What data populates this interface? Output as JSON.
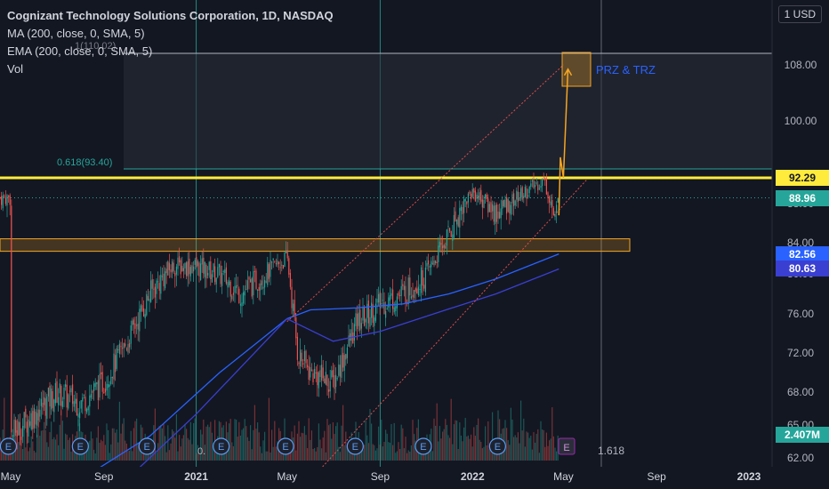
{
  "header": {
    "symbol_line": "Cognizant Technology Solutions Corporation, 1D, NASDAQ",
    "ma_line": "MA (200, close, 0, SMA, 5)",
    "ema_line": "EMA (200, close, 0, SMA, 5)",
    "vol_line": "Vol",
    "currency": "USD"
  },
  "colors": {
    "background": "#131722",
    "up_candle": "#26a69a",
    "down_candle": "#ef5350",
    "ma_line": "#2962ff",
    "ema_line": "#3a3fd1",
    "fib_zone": "#2a2e39",
    "yellow_line": "#ffeb3b",
    "orange": "#f5a623",
    "zone_label": "#2962ff"
  },
  "annotations": {
    "fib_top_label": "1(110.02)",
    "fib_618_label": "0.618(93.40)",
    "fib_1618_label": "1.618",
    "zone_label": "PRZ & TRZ",
    "bottom_e_label": "0."
  },
  "price_tags": {
    "yellow_level": "92.29",
    "last_price": "88.96",
    "ma_value": "82.56",
    "ema_value": "80.63",
    "volume": "2.407M"
  },
  "chart_data": {
    "type": "candlestick",
    "title": "Cognizant Technology Solutions Corporation, 1D, NASDAQ",
    "y_axis_ticks": [
      "108.00",
      "100.00",
      "92.00",
      "88.00",
      "84.00",
      "80.00",
      "76.00",
      "72.00",
      "68.00",
      "65.00",
      "62.00"
    ],
    "y_tick_values": [
      108,
      100,
      92,
      88,
      84,
      80,
      76,
      72,
      68,
      65,
      62
    ],
    "x_axis_ticks": [
      "May",
      "Sep",
      "2021",
      "May",
      "Sep",
      "2022",
      "May",
      "Sep",
      "2023"
    ],
    "x_tick_dates": [
      "2020-05",
      "2020-09",
      "2021-01",
      "2021-05",
      "2021-09",
      "2022-01",
      "2022-05",
      "2022-09",
      "2023-01"
    ],
    "ylim": [
      62,
      112
    ],
    "price_path": [
      [
        "2020-05",
        64
      ],
      [
        "2020-06",
        66
      ],
      [
        "2020-07",
        68
      ],
      [
        "2020-08",
        67
      ],
      [
        "2020-09",
        69
      ],
      [
        "2020-10",
        73
      ],
      [
        "2020-11",
        78
      ],
      [
        "2020-12",
        81
      ],
      [
        "2021-01",
        81
      ],
      [
        "2021-02",
        80
      ],
      [
        "2021-03",
        78
      ],
      [
        "2021-04",
        80
      ],
      [
        "2021-05",
        82
      ],
      [
        "2021-05-15",
        72
      ],
      [
        "2021-06",
        70
      ],
      [
        "2021-07",
        69
      ],
      [
        "2021-08",
        75
      ],
      [
        "2021-09",
        77
      ],
      [
        "2021-10",
        78
      ],
      [
        "2021-11",
        80
      ],
      [
        "2021-12",
        85
      ],
      [
        "2022-01",
        90
      ],
      [
        "2022-02",
        87
      ],
      [
        "2022-03",
        89
      ],
      [
        "2022-04-05",
        92
      ],
      [
        "2022-04-20",
        86
      ],
      [
        "2022-04-25",
        88.96
      ]
    ],
    "levels": {
      "fib_1": 110.02,
      "fib_0618": 93.4,
      "yellow_support": 92.29,
      "orange_zone": [
        82.9,
        84.4
      ],
      "ma_200_last": 82.56,
      "ema_200_last": 80.63
    },
    "ma_200": [
      [
        "2020-08",
        60
      ],
      [
        "2020-11",
        64
      ],
      [
        "2021-02",
        70
      ],
      [
        "2021-05",
        75.5
      ],
      [
        "2021-06",
        76.4
      ],
      [
        "2021-08",
        76.6
      ],
      [
        "2021-10",
        77.0
      ],
      [
        "2021-12",
        78.0
      ],
      [
        "2022-02",
        79.5
      ],
      [
        "2022-04-25",
        82.56
      ]
    ],
    "ema_200": [
      [
        "2020-10",
        60
      ],
      [
        "2021-01",
        66
      ],
      [
        "2021-05",
        75.5
      ],
      [
        "2021-07",
        73.2
      ],
      [
        "2021-09",
        74.2
      ],
      [
        "2021-12",
        76.5
      ],
      [
        "2022-02",
        78.0
      ],
      [
        "2022-04-25",
        80.63
      ]
    ],
    "projection": [
      [
        "2022-04-25",
        86.8
      ],
      [
        "2022-04-27",
        95
      ],
      [
        "2022-05-01",
        92.3
      ],
      [
        "2022-05-07",
        107.4
      ]
    ],
    "channel_upper": [
      [
        "2021-05",
        75.2
      ],
      [
        "2022-05",
        108
      ]
    ],
    "channel_lower": [
      [
        "2021-06",
        60
      ],
      [
        "2022-06",
        92
      ]
    ],
    "vertical_markers": [
      "2021-01",
      "2021-09",
      "2022-06-20"
    ],
    "earnings_markers": [
      "2020-04-28",
      "2020-08-01",
      "2020-10-28",
      "2021-02-03",
      "2021-04-29",
      "2021-07-30",
      "2021-10-28",
      "2022-02-03"
    ],
    "volume_last": "2.407M"
  }
}
